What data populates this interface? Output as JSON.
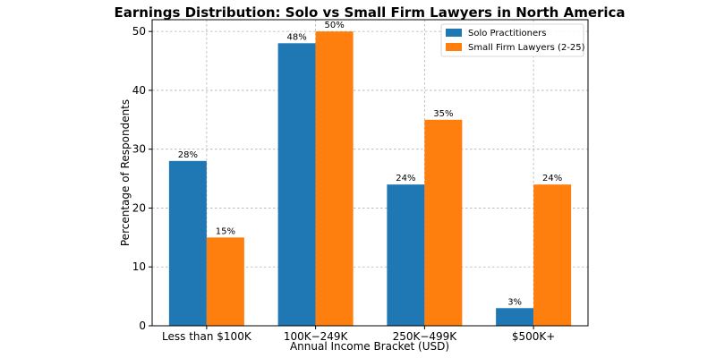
{
  "chart_data": {
    "type": "bar",
    "title": "Earnings Distribution: Solo vs Small Firm Lawyers in North America",
    "xlabel": "Annual Income Bracket (USD)",
    "ylabel": "Percentage of Respondents",
    "categories": [
      "Less than $100K",
      "100K−249K",
      "250K−499K",
      "$500K+"
    ],
    "ylim": [
      0,
      52
    ],
    "yticks": [
      0,
      10,
      20,
      30,
      40,
      50
    ],
    "grid": true,
    "legend_position": "top-right",
    "series": [
      {
        "name": "Solo Practitioners",
        "color": "#1f77b4",
        "values": [
          28,
          48,
          24,
          3
        ],
        "labels": [
          "28%",
          "48%",
          "24%",
          "3%"
        ]
      },
      {
        "name": "Small Firm Lawyers (2-25)",
        "color": "#ff7f0e",
        "values": [
          15,
          50,
          35,
          24
        ],
        "labels": [
          "15%",
          "50%",
          "35%",
          "24%"
        ]
      }
    ]
  }
}
